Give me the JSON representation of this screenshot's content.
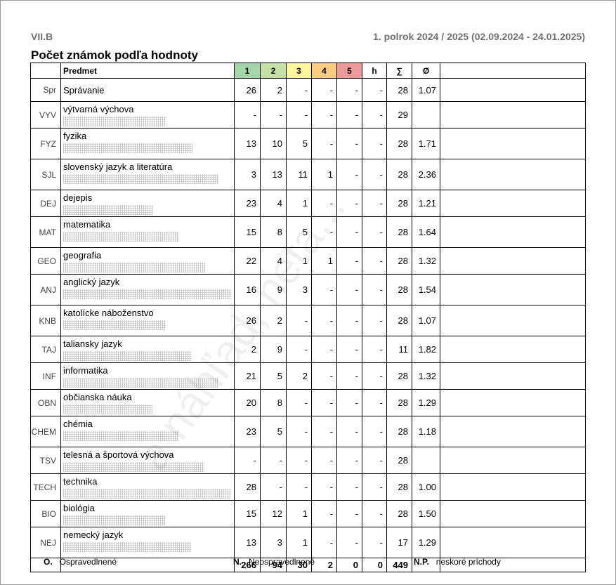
{
  "header": {
    "class_name": "VII.B",
    "period": "1. polrok 2024 / 2025 (02.09.2024 - 24.01.2025)",
    "title": "Počet známok podľa hodnoty"
  },
  "table": {
    "columns": {
      "subject": "Predmet",
      "g1": "1",
      "g2": "2",
      "g3": "3",
      "g4": "4",
      "g5": "5",
      "h": "h",
      "sum": "∑",
      "avg": "Ø"
    },
    "rows": [
      {
        "abbr": "Spr",
        "name": "Správanie",
        "g1": "26",
        "g2": "2",
        "g3": "-",
        "g4": "-",
        "g5": "-",
        "h": "-",
        "sum": "28",
        "avg": "1.07",
        "teacher": false
      },
      {
        "abbr": "VYV",
        "name": "výtvarná výchova",
        "g1": "-",
        "g2": "-",
        "g3": "-",
        "g4": "-",
        "g5": "-",
        "h": "-",
        "sum": "29",
        "avg": "",
        "teacher": true
      },
      {
        "abbr": "FYZ",
        "name": "fyzika",
        "g1": "13",
        "g2": "10",
        "g3": "5",
        "g4": "-",
        "g5": "-",
        "h": "-",
        "sum": "28",
        "avg": "1.71",
        "teacher": true
      },
      {
        "abbr": "SJL",
        "name": "slovenský jazyk a literatúra",
        "g1": "3",
        "g2": "13",
        "g3": "11",
        "g4": "1",
        "g5": "-",
        "h": "-",
        "sum": "28",
        "avg": "2.36",
        "teacher": true
      },
      {
        "abbr": "DEJ",
        "name": "dejepis",
        "g1": "23",
        "g2": "4",
        "g3": "1",
        "g4": "-",
        "g5": "-",
        "h": "-",
        "sum": "28",
        "avg": "1.21",
        "teacher": true
      },
      {
        "abbr": "MAT",
        "name": "matematika",
        "g1": "15",
        "g2": "8",
        "g3": "5",
        "g4": "-",
        "g5": "-",
        "h": "-",
        "sum": "28",
        "avg": "1.64",
        "teacher": true
      },
      {
        "abbr": "GEO",
        "name": "geografia",
        "g1": "22",
        "g2": "4",
        "g3": "1",
        "g4": "1",
        "g5": "-",
        "h": "-",
        "sum": "28",
        "avg": "1.32",
        "teacher": true
      },
      {
        "abbr": "ANJ",
        "name": "anglický jazyk",
        "g1": "16",
        "g2": "9",
        "g3": "3",
        "g4": "-",
        "g5": "-",
        "h": "-",
        "sum": "28",
        "avg": "1.54",
        "teacher": true
      },
      {
        "abbr": "KNB",
        "name": "katolícke náboženstvo",
        "g1": "26",
        "g2": "2",
        "g3": "-",
        "g4": "-",
        "g5": "-",
        "h": "-",
        "sum": "28",
        "avg": "1.07",
        "teacher": true
      },
      {
        "abbr": "TAJ",
        "name": "taliansky jazyk",
        "g1": "2",
        "g2": "9",
        "g3": "-",
        "g4": "-",
        "g5": "-",
        "h": "-",
        "sum": "11",
        "avg": "1.82",
        "teacher": true
      },
      {
        "abbr": "INF",
        "name": "informatika",
        "g1": "21",
        "g2": "5",
        "g3": "2",
        "g4": "-",
        "g5": "-",
        "h": "-",
        "sum": "28",
        "avg": "1.32",
        "teacher": true
      },
      {
        "abbr": "OBN",
        "name": "občianska náuka",
        "g1": "20",
        "g2": "8",
        "g3": "-",
        "g4": "-",
        "g5": "-",
        "h": "-",
        "sum": "28",
        "avg": "1.29",
        "teacher": true
      },
      {
        "abbr": "CHEM",
        "name": "chémia",
        "g1": "23",
        "g2": "5",
        "g3": "-",
        "g4": "-",
        "g5": "-",
        "h": "-",
        "sum": "28",
        "avg": "1.18",
        "teacher": true
      },
      {
        "abbr": "TSV",
        "name": "telesná a športová výchova",
        "g1": "-",
        "g2": "-",
        "g3": "-",
        "g4": "-",
        "g5": "-",
        "h": "-",
        "sum": "28",
        "avg": "",
        "teacher": true
      },
      {
        "abbr": "TECH",
        "name": "technika",
        "g1": "28",
        "g2": "-",
        "g3": "-",
        "g4": "-",
        "g5": "-",
        "h": "-",
        "sum": "28",
        "avg": "1.00",
        "teacher": true
      },
      {
        "abbr": "BIO",
        "name": "biológia",
        "g1": "15",
        "g2": "12",
        "g3": "1",
        "g4": "-",
        "g5": "-",
        "h": "-",
        "sum": "28",
        "avg": "1.50",
        "teacher": true
      },
      {
        "abbr": "NEJ",
        "name": "nemecký jazyk",
        "g1": "13",
        "g2": "3",
        "g3": "1",
        "g4": "-",
        "g5": "-",
        "h": "-",
        "sum": "17",
        "avg": "1.29",
        "teacher": true
      }
    ],
    "totals": {
      "g1": "266",
      "g2": "94",
      "g3": "30",
      "g4": "2",
      "g5": "0",
      "h": "0",
      "sum": "449"
    }
  },
  "legend": {
    "o_key": "O.",
    "o_label": "Ospravedlnené",
    "n_key": "N.",
    "n_label": "Neospravedlnené",
    "np_key": "N.P.",
    "np_label": "neskoré príchody"
  },
  "watermark": "a náhľad, neta...",
  "colors": {
    "g1": "#a5d6a7",
    "g2": "#c5e1a5",
    "g3": "#fff59d",
    "g4": "#ffcc80",
    "g5": "#ef9a9a"
  }
}
